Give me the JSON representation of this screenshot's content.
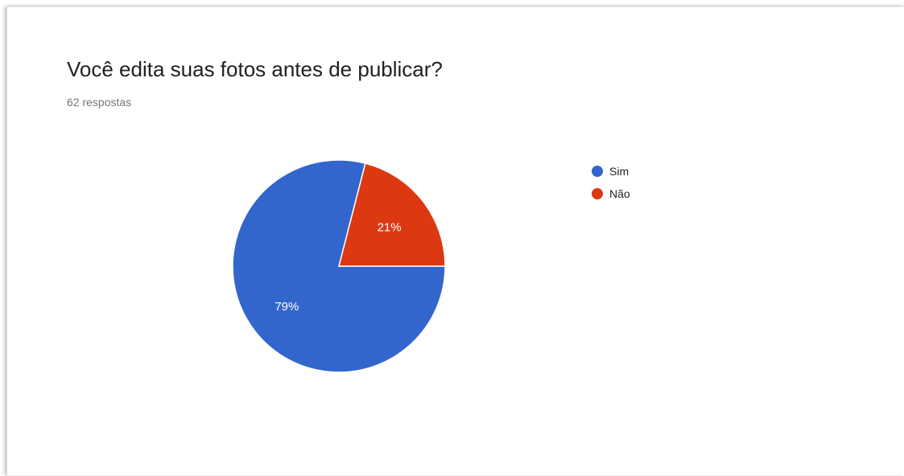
{
  "form": {
    "question": "Você edita suas fotos antes de publicar?",
    "responses": "62 respostas"
  },
  "chart_data": {
    "type": "pie",
    "categories": [
      "Sim",
      "Não"
    ],
    "values": [
      79,
      21
    ],
    "labels": [
      "79%",
      "21%"
    ],
    "colors": [
      "#3366cc",
      "#dc3912"
    ],
    "legend_position": "right"
  }
}
